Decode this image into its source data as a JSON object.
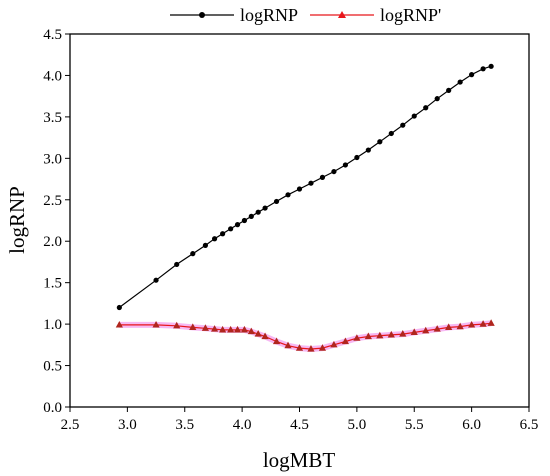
{
  "chart_data": {
    "type": "line",
    "title": "",
    "xlabel": "logMBT",
    "ylabel": "logRNP",
    "xlim": [
      2.5,
      6.5
    ],
    "ylim": [
      0.0,
      4.5
    ],
    "x_ticks": [
      "2.5",
      "3.0",
      "3.5",
      "4.0",
      "4.5",
      "5.0",
      "5.5",
      "6.0",
      "6.5"
    ],
    "y_ticks": [
      "0.0",
      "0.5",
      "1.0",
      "1.5",
      "2.0",
      "2.5",
      "3.0",
      "3.5",
      "4.0",
      "4.5"
    ],
    "grid": false,
    "legend_position": "top-center",
    "series": [
      {
        "name": "logRNP",
        "color": "#000000",
        "marker": "circle",
        "x": [
          2.93,
          3.25,
          3.43,
          3.57,
          3.68,
          3.76,
          3.83,
          3.9,
          3.96,
          4.02,
          4.08,
          4.14,
          4.2,
          4.3,
          4.4,
          4.5,
          4.6,
          4.7,
          4.8,
          4.9,
          5.0,
          5.1,
          5.2,
          5.3,
          5.4,
          5.5,
          5.6,
          5.7,
          5.8,
          5.9,
          6.0,
          6.1,
          6.17
        ],
        "y": [
          1.2,
          1.53,
          1.72,
          1.85,
          1.95,
          2.03,
          2.09,
          2.15,
          2.2,
          2.25,
          2.3,
          2.35,
          2.4,
          2.48,
          2.56,
          2.63,
          2.7,
          2.77,
          2.84,
          2.92,
          3.01,
          3.1,
          3.2,
          3.3,
          3.4,
          3.51,
          3.61,
          3.72,
          3.82,
          3.92,
          4.01,
          4.08,
          4.11
        ]
      },
      {
        "name": "logRNP'",
        "color": "#e8161b",
        "marker": "triangle",
        "x": [
          2.93,
          3.25,
          3.43,
          3.57,
          3.68,
          3.76,
          3.83,
          3.9,
          3.96,
          4.02,
          4.08,
          4.14,
          4.2,
          4.3,
          4.4,
          4.5,
          4.6,
          4.7,
          4.8,
          4.9,
          5.0,
          5.1,
          5.2,
          5.3,
          5.4,
          5.5,
          5.6,
          5.7,
          5.8,
          5.9,
          6.0,
          6.1,
          6.17
        ],
        "y": [
          0.99,
          0.99,
          0.98,
          0.96,
          0.95,
          0.94,
          0.93,
          0.93,
          0.93,
          0.93,
          0.91,
          0.88,
          0.85,
          0.79,
          0.74,
          0.71,
          0.7,
          0.71,
          0.75,
          0.79,
          0.83,
          0.85,
          0.86,
          0.87,
          0.88,
          0.9,
          0.92,
          0.94,
          0.96,
          0.97,
          0.99,
          1.0,
          1.01
        ]
      }
    ]
  }
}
